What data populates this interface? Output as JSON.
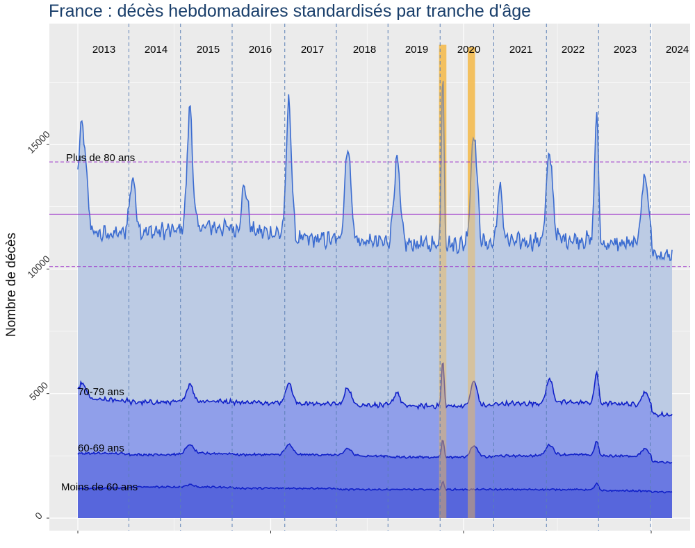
{
  "chart_data": {
    "type": "area",
    "title": "France : décès hebdomadaires standardisés par tranche d'âge",
    "xlabel": "",
    "ylabel": "Nombre de décès",
    "ylim": [
      -500,
      19500
    ],
    "yticks": [
      0,
      5000,
      10000,
      15000
    ],
    "years": [
      "2013",
      "2014",
      "2015",
      "2016",
      "2017",
      "2018",
      "2019",
      "2020",
      "2021",
      "2022",
      "2023",
      "2024"
    ],
    "x_range": [
      2013.0,
      2024.4
    ],
    "grid": true,
    "colors": {
      "background": "#ebebeb",
      "grid": "#ffffff",
      "year_divider": "#5b7fb5",
      "highlight": "#f5b94a",
      "reference": "#9b2fc9",
      "fill_80": "#bccbe4",
      "line_80": "#3a6bd0",
      "fill_70": "#909fea",
      "fill_60": "#6a79e2",
      "fill_u60": "#5766dc",
      "line_dark": "#1020c8"
    },
    "series": [
      {
        "name": "Plus de 80 ans",
        "summer_level": [
          11400,
          11500,
          11700,
          11500,
          11200,
          11100,
          11000,
          11000,
          11100,
          11200,
          11000,
          10500
        ],
        "peaks": [
          {
            "x": 2013.08,
            "y": 15700,
            "w": 0.08
          },
          {
            "x": 2014.05,
            "y": 13600,
            "w": 0.06
          },
          {
            "x": 2015.15,
            "y": 16500,
            "w": 0.05
          },
          {
            "x": 2016.2,
            "y": 13300,
            "w": 0.06
          },
          {
            "x": 2017.05,
            "y": 16700,
            "w": 0.05
          },
          {
            "x": 2018.18,
            "y": 14900,
            "w": 0.06
          },
          {
            "x": 2019.12,
            "y": 14300,
            "w": 0.06
          },
          {
            "x": 2020.0,
            "y": 18000,
            "w": 0.025
          },
          {
            "x": 2020.6,
            "y": 15500,
            "w": 0.06
          },
          {
            "x": 2021.1,
            "y": 13200,
            "w": 0.05
          },
          {
            "x": 2022.05,
            "y": 14600,
            "w": 0.06
          },
          {
            "x": 2022.95,
            "y": 16300,
            "w": 0.035
          },
          {
            "x": 2023.88,
            "y": 13700,
            "w": 0.07
          }
        ]
      },
      {
        "name": "70-79 ans",
        "summer_level": [
          4750,
          4650,
          4700,
          4650,
          4600,
          4550,
          4500,
          4500,
          4600,
          4650,
          4600,
          4150
        ],
        "peaks": [
          {
            "x": 2013.08,
            "y": 5400,
            "w": 0.08
          },
          {
            "x": 2015.15,
            "y": 5400,
            "w": 0.06
          },
          {
            "x": 2017.05,
            "y": 5450,
            "w": 0.06
          },
          {
            "x": 2018.18,
            "y": 5250,
            "w": 0.06
          },
          {
            "x": 2019.12,
            "y": 5050,
            "w": 0.06
          },
          {
            "x": 2020.0,
            "y": 6300,
            "w": 0.025
          },
          {
            "x": 2020.6,
            "y": 5500,
            "w": 0.06
          },
          {
            "x": 2022.05,
            "y": 5600,
            "w": 0.06
          },
          {
            "x": 2022.95,
            "y": 5900,
            "w": 0.035
          },
          {
            "x": 2023.88,
            "y": 5050,
            "w": 0.07
          }
        ]
      },
      {
        "name": "60-69 ans",
        "summer_level": [
          2600,
          2550,
          2600,
          2550,
          2550,
          2500,
          2450,
          2450,
          2500,
          2550,
          2500,
          2250
        ],
        "peaks": [
          {
            "x": 2015.15,
            "y": 2950,
            "w": 0.07
          },
          {
            "x": 2017.05,
            "y": 2950,
            "w": 0.07
          },
          {
            "x": 2018.18,
            "y": 2800,
            "w": 0.07
          },
          {
            "x": 2020.0,
            "y": 3150,
            "w": 0.025
          },
          {
            "x": 2020.6,
            "y": 2900,
            "w": 0.07
          },
          {
            "x": 2022.05,
            "y": 2950,
            "w": 0.07
          },
          {
            "x": 2022.95,
            "y": 3100,
            "w": 0.035
          },
          {
            "x": 2023.88,
            "y": 2800,
            "w": 0.07
          }
        ]
      },
      {
        "name": "Moins de 60 ans",
        "summer_level": [
          1200,
          1250,
          1250,
          1200,
          1200,
          1150,
          1150,
          1150,
          1150,
          1150,
          1100,
          1050
        ],
        "peaks": [
          {
            "x": 2015.15,
            "y": 1350,
            "w": 0.07
          },
          {
            "x": 2020.0,
            "y": 1450,
            "w": 0.025
          },
          {
            "x": 2022.95,
            "y": 1400,
            "w": 0.035
          }
        ]
      }
    ],
    "reference_lines": [
      {
        "y": 12200,
        "style": "solid"
      },
      {
        "y": 14300,
        "style": "dashed"
      },
      {
        "y": 10100,
        "style": "dashed"
      }
    ],
    "highlight_periods": [
      {
        "from": 2019.93,
        "to": 2020.07,
        "ymax": 19000
      },
      {
        "from": 2020.48,
        "to": 2020.62,
        "ymax": 18900
      }
    ],
    "year_dividers": [
      2013.98,
      2014.97,
      2015.96,
      2016.97,
      2017.96,
      2018.95,
      2019.95,
      2020.98,
      2021.99,
      2022.99,
      2023.98
    ]
  }
}
